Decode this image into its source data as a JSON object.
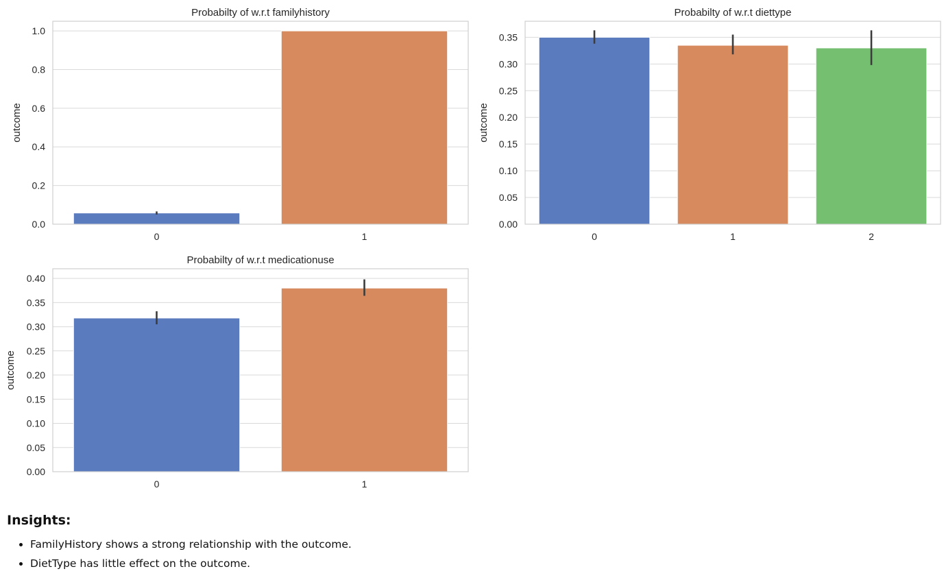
{
  "chart_data": [
    {
      "type": "bar",
      "title": "Probabilty of w.r.t familyhistory",
      "xlabel": "",
      "ylabel": "outcome",
      "categories": [
        "0",
        "1"
      ],
      "values": [
        0.058,
        1.0
      ],
      "errors": [
        [
          0.05,
          0.066
        ],
        [
          1.0,
          1.0
        ]
      ],
      "colors": [
        "#5b7bbf",
        "#d88a5f"
      ],
      "ylim": [
        0,
        1.05
      ],
      "yticks": [
        0.0,
        0.2,
        0.4,
        0.6,
        0.8,
        1.0
      ],
      "ytick_decimals": 1,
      "grid": true
    },
    {
      "type": "bar",
      "title": "Probabilty of w.r.t diettype",
      "xlabel": "",
      "ylabel": "outcome",
      "categories": [
        "0",
        "1",
        "2"
      ],
      "values": [
        0.35,
        0.335,
        0.33
      ],
      "errors": [
        [
          0.338,
          0.363
        ],
        [
          0.318,
          0.355
        ],
        [
          0.298,
          0.363
        ]
      ],
      "colors": [
        "#5b7bbf",
        "#d88a5f",
        "#74bf70"
      ],
      "ylim": [
        0,
        0.38
      ],
      "yticks": [
        0.0,
        0.05,
        0.1,
        0.15,
        0.2,
        0.25,
        0.3,
        0.35
      ],
      "ytick_decimals": 2,
      "grid": true
    },
    {
      "type": "bar",
      "title": "Probabilty of w.r.t medicationuse",
      "xlabel": "",
      "ylabel": "outcome",
      "categories": [
        "0",
        "1"
      ],
      "values": [
        0.318,
        0.38
      ],
      "errors": [
        [
          0.305,
          0.332
        ],
        [
          0.364,
          0.398
        ]
      ],
      "colors": [
        "#5b7bbf",
        "#d88a5f"
      ],
      "ylim": [
        0,
        0.42
      ],
      "yticks": [
        0.0,
        0.05,
        0.1,
        0.15,
        0.2,
        0.25,
        0.3,
        0.35,
        0.4
      ],
      "ytick_decimals": 2,
      "grid": true
    }
  ],
  "insights": {
    "heading": "Insights:",
    "items": [
      "FamilyHistory shows a strong relationship with the outcome.",
      "DietType has little effect on the outcome."
    ]
  }
}
